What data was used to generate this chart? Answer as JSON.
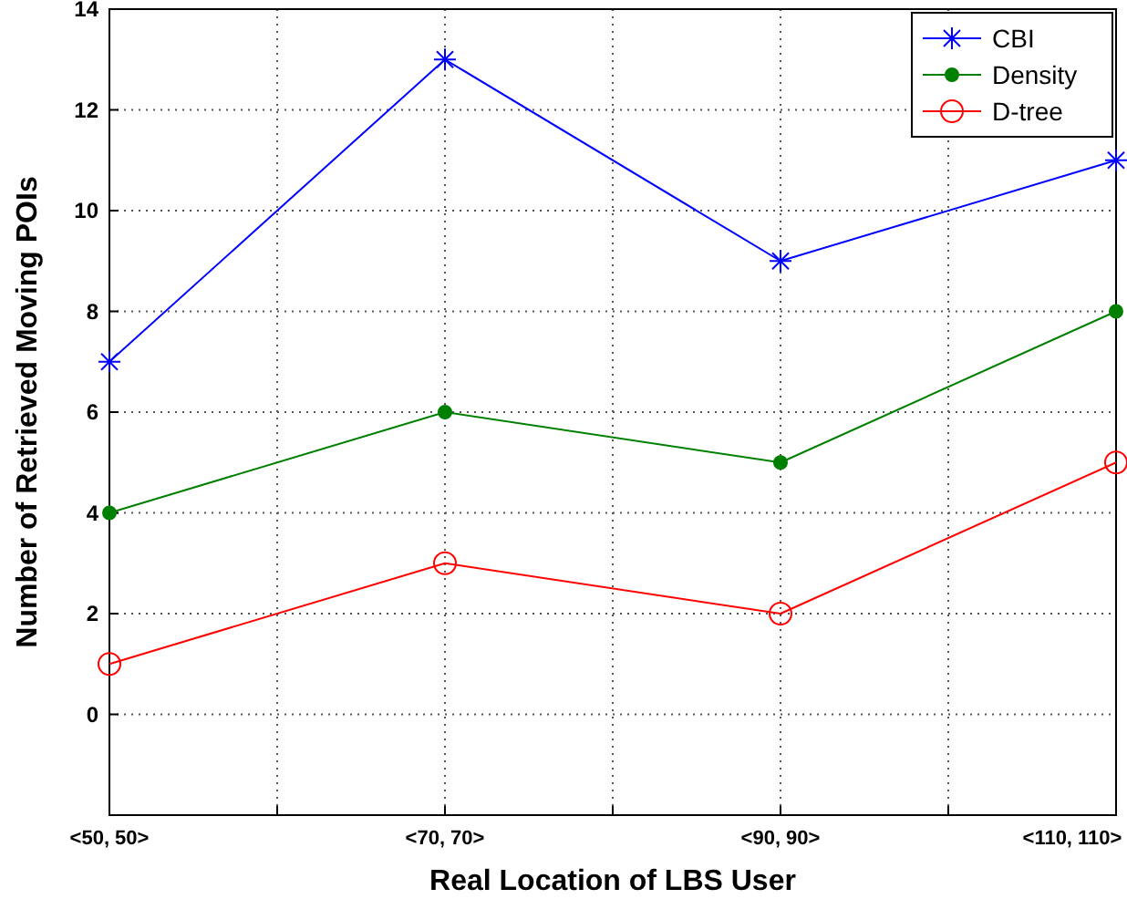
{
  "chart_data": {
    "type": "line",
    "xlabel": "Real Location of LBS User",
    "ylabel": "Number of Retrieved Moving POIs",
    "categories": [
      "<50, 50>",
      "<70, 70>",
      "<90, 90>",
      "<110, 110>"
    ],
    "ylim": [
      -2,
      14
    ],
    "yticks": [
      0,
      2,
      4,
      6,
      8,
      10,
      12,
      14
    ],
    "grid": true,
    "legend": "top right",
    "line_style": "solid",
    "series": [
      {
        "name": "CBI",
        "color": "#0000ff",
        "values": [
          7,
          13,
          9,
          11
        ],
        "marker": "cross"
      },
      {
        "name": "Density",
        "color": "#008000",
        "values": [
          4,
          6,
          5,
          8
        ],
        "marker": "circle"
      },
      {
        "name": "D-tree",
        "color": "#ff0000",
        "values": [
          1,
          3,
          2,
          5
        ],
        "marker": "circle"
      }
    ]
  }
}
